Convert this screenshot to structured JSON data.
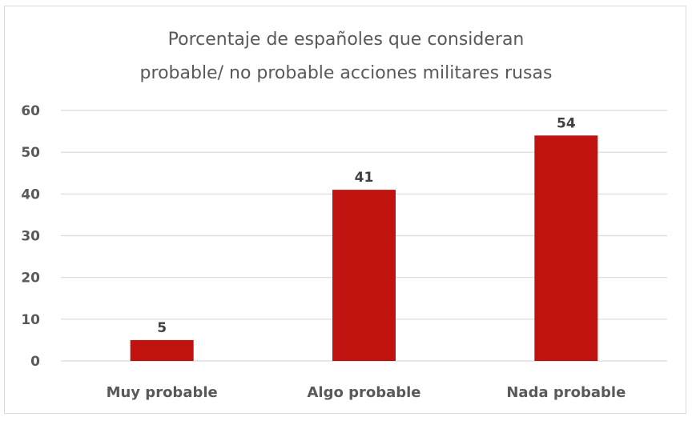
{
  "chart_data": {
    "type": "bar",
    "title_lines": [
      "Porcentaje de españoles que consideran",
      "probable/ no probable acciones militares rusas"
    ],
    "categories": [
      "Muy probable",
      "Algo probable",
      "Nada probable"
    ],
    "values": [
      5,
      41,
      54
    ],
    "data_labels": [
      "5",
      "41",
      "54"
    ],
    "xlabel": "",
    "ylabel": "",
    "ylim": [
      0,
      60
    ],
    "yticks": [
      "0",
      "10",
      "20",
      "30",
      "40",
      "50",
      "60"
    ],
    "grid": true,
    "legend": "none",
    "bar_color": "#C0120F"
  }
}
